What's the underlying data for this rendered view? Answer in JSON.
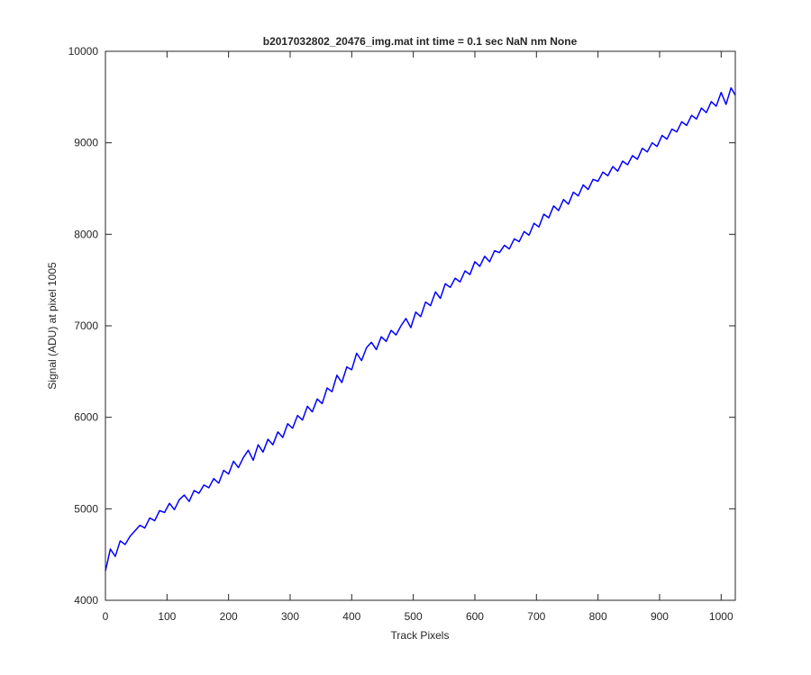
{
  "chart_data": {
    "type": "line",
    "title": "b2017032802_20476_img.mat int time = 0.1 sec  NaN nm None",
    "x_label": "Track Pixels",
    "y_label": "Signal (ADU) at pixel 1005",
    "x": [
      0,
      8,
      16,
      24,
      32,
      40,
      48,
      56,
      64,
      72,
      80,
      88,
      96,
      104,
      112,
      120,
      128,
      136,
      144,
      152,
      160,
      168,
      176,
      184,
      192,
      200,
      208,
      216,
      224,
      232,
      240,
      248,
      256,
      264,
      272,
      280,
      288,
      296,
      304,
      312,
      320,
      328,
      336,
      344,
      352,
      360,
      368,
      376,
      384,
      392,
      400,
      408,
      416,
      424,
      432,
      440,
      448,
      456,
      464,
      472,
      480,
      488,
      496,
      504,
      512,
      520,
      528,
      536,
      544,
      552,
      560,
      568,
      576,
      584,
      592,
      600,
      608,
      616,
      624,
      632,
      640,
      648,
      656,
      664,
      672,
      680,
      688,
      696,
      704,
      712,
      720,
      728,
      736,
      744,
      752,
      760,
      768,
      776,
      784,
      792,
      800,
      808,
      816,
      824,
      832,
      840,
      848,
      856,
      864,
      872,
      880,
      888,
      896,
      904,
      912,
      920,
      928,
      936,
      944,
      952,
      960,
      968,
      976,
      984,
      992,
      1000,
      1008,
      1016,
      1023
    ],
    "series": [
      {
        "color": "#0000ff",
        "values": [
          4320,
          4560,
          4480,
          4650,
          4610,
          4700,
          4760,
          4820,
          4790,
          4900,
          4870,
          4980,
          4960,
          5060,
          4990,
          5100,
          5150,
          5080,
          5200,
          5170,
          5260,
          5230,
          5330,
          5280,
          5420,
          5380,
          5520,
          5450,
          5560,
          5640,
          5530,
          5700,
          5620,
          5760,
          5700,
          5840,
          5780,
          5930,
          5880,
          6020,
          5970,
          6120,
          6060,
          6200,
          6150,
          6320,
          6280,
          6460,
          6380,
          6550,
          6520,
          6700,
          6620,
          6760,
          6820,
          6740,
          6880,
          6830,
          6950,
          6900,
          7000,
          7080,
          6980,
          7150,
          7100,
          7260,
          7220,
          7370,
          7300,
          7460,
          7420,
          7520,
          7480,
          7600,
          7560,
          7700,
          7650,
          7760,
          7700,
          7820,
          7800,
          7880,
          7840,
          7950,
          7920,
          8030,
          7990,
          8120,
          8080,
          8220,
          8180,
          8310,
          8260,
          8380,
          8330,
          8460,
          8420,
          8540,
          8490,
          8600,
          8580,
          8680,
          8640,
          8740,
          8690,
          8800,
          8760,
          8860,
          8820,
          8940,
          8900,
          9000,
          8960,
          9080,
          9040,
          9150,
          9120,
          9230,
          9190,
          9300,
          9260,
          9380,
          9330,
          9450,
          9400,
          9550,
          9420,
          9600,
          9520
        ]
      }
    ],
    "xlim": [
      0,
      1023
    ],
    "xticks": [
      0,
      100,
      200,
      300,
      400,
      500,
      600,
      700,
      800,
      900,
      1000
    ],
    "ylim": [
      4000,
      10000
    ],
    "yticks": [
      4000,
      5000,
      6000,
      7000,
      8000,
      9000,
      10000
    ],
    "grid": false
  }
}
